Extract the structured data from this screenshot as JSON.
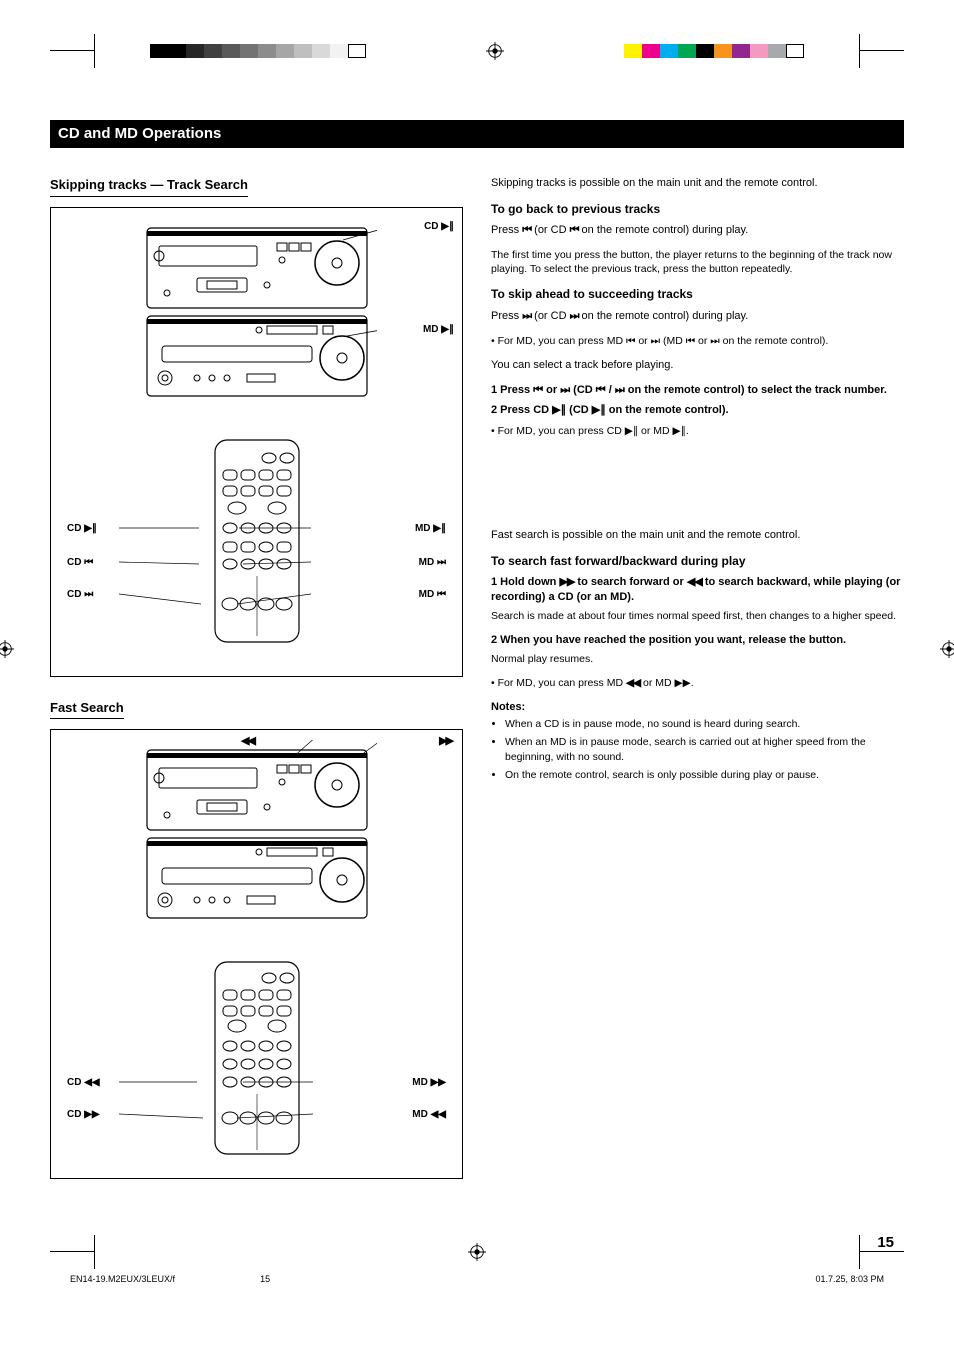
{
  "page_number": "15",
  "footer_left": "EN14-19.M2EUX/3LEUX/f",
  "footer_right": "01.7.25, 8:03 PM",
  "footer_center": "15",
  "section_title": "CD and MD Operations",
  "crop_grays": [
    "#000000",
    "#000000",
    "#262626",
    "#404040",
    "#595959",
    "#737373",
    "#8c8c8c",
    "#a6a6a6",
    "#bfbfbf",
    "#d9d9d9",
    "#f2f2f2",
    "#ffffff"
  ],
  "crop_colors": [
    "#fff200",
    "#ec008c",
    "#00aeef",
    "#00a651",
    "#000000",
    "#f7941d",
    "#92278f",
    "#f49ac1",
    "#a7a9ac",
    "#ffffff"
  ],
  "fig1": {
    "heading": "Skipping tracks — Track Search",
    "unit_top_label": "CD ▶∥",
    "unit_bottom_label": "MD ▶∥",
    "remote_labels": {
      "cd_play": "CD ▶∥",
      "md_play": "MD ▶∥",
      "cd_prev": "CD ⏮",
      "cd_next": "CD ⏭",
      "md_prev": "MD ⏮",
      "md_next": "MD ⏭"
    }
  },
  "fig2": {
    "heading": "Fast Search",
    "unit_label_left": "◀◀",
    "unit_label_right": "▶▶",
    "remote_labels": {
      "cd_rew": "CD ◀◀",
      "cd_fwd": "CD ▶▶",
      "md_rew": "MD ◀◀",
      "md_fwd": "MD ▶▶"
    }
  },
  "right": {
    "intro": "Skipping tracks is possible on the main unit and the remote control.",
    "back_h": "To go back to previous tracks",
    "back_body_1": "Press ",
    "back_body_2": " (or CD ",
    "back_body_3": " on the remote control) during play.",
    "back_note": "The first time you press the button, the player returns to the beginning of the track now playing. To select the previous track, press the button repeatedly.",
    "ahead_h": "To skip ahead to succeeding tracks",
    "ahead_body_1": "Press ",
    "ahead_body_2": " (or CD ",
    "ahead_body_3": " on the remote control) during play.",
    "md_note_1": "• For MD, you can press MD ⏮ or ⏭ (MD ⏮ or ⏭ on the remote control).",
    "select_track": "You can select a track before playing.",
    "step1": "1 Press ⏮ or ⏭ (CD ⏮ / ⏭ on the remote control) to select the track number.",
    "step2": "2 Press CD ▶∥ (CD ▶∥ on the remote control).",
    "md_note_2": "• For MD, you can press CD ▶∥ or MD ▶∥.",
    "fast_intro": "Fast search is possible on the main unit and the remote control.",
    "fast_h": "To search fast forward/backward during play",
    "fast_step1_a": "1 Hold down ",
    "fast_step1_b": " to search forward or ",
    "fast_step1_c": " to search backward, while playing (or recording) a CD (or an MD).",
    "fast_step1_note": "Search is made at about four times normal speed first, then changes to a higher speed.",
    "fast_step2": "2 When you have reached the position you want, release the button.",
    "fast_step2_note": "Normal play resumes.",
    "md_note_3_a": "• For MD, you can press MD ",
    "md_note_3_b": " or MD ▶▶.",
    "notes_label": "Notes:",
    "notes": [
      "When a CD is in pause mode, no sound is heard during search.",
      "When an MD is in pause mode, search is carried out at higher speed from the beginning, with no sound.",
      "On the remote control, search is only possible during play or pause."
    ]
  }
}
